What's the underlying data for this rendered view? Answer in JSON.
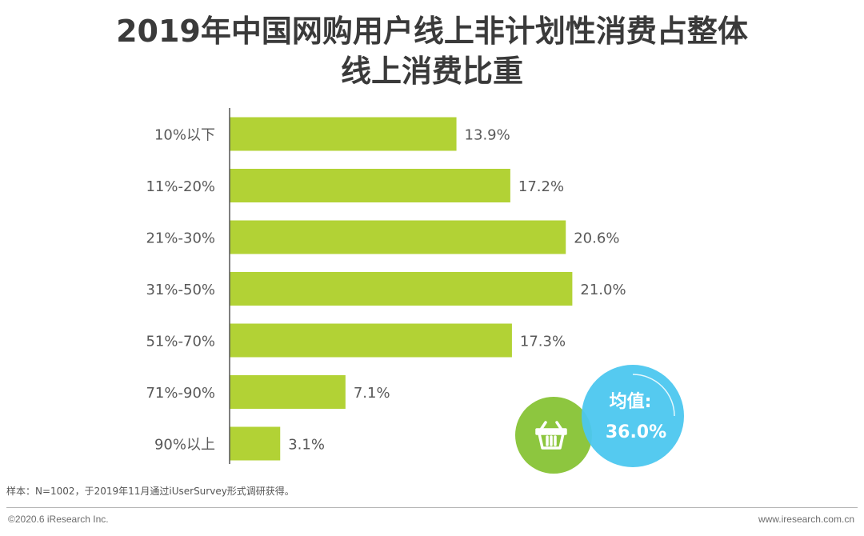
{
  "title_line1": "2019年中国网购用户线上非计划性消费占整体",
  "title_line2": "线上消费比重",
  "chart_data": {
    "type": "bar",
    "orientation": "horizontal",
    "categories": [
      "10%以下",
      "11%-20%",
      "21%-30%",
      "31%-50%",
      "51%-70%",
      "71%-90%",
      "90%以上"
    ],
    "values": [
      13.9,
      17.2,
      20.6,
      21.0,
      17.3,
      7.1,
      3.1
    ],
    "data_labels": [
      "13.9%",
      "17.2%",
      "20.6%",
      "21.0%",
      "17.3%",
      "7.1%",
      "3.1%"
    ],
    "unit": "%",
    "grid": false,
    "legend": "none"
  },
  "average_badge": {
    "label": "均值:",
    "value": "36.0%",
    "icon": "basket-icon"
  },
  "colors": {
    "bar": "#b2d235",
    "badge_green": "#8dc63f",
    "badge_blue": "#4cc7ef",
    "title": "#3a3a3a",
    "text": "#595959"
  },
  "footnote": "样本：N=1002，于2019年11月通过iUserSurvey形式调研获得。",
  "copyright": "©2020.6 iResearch Inc.",
  "website": "www.iresearch.com.cn"
}
